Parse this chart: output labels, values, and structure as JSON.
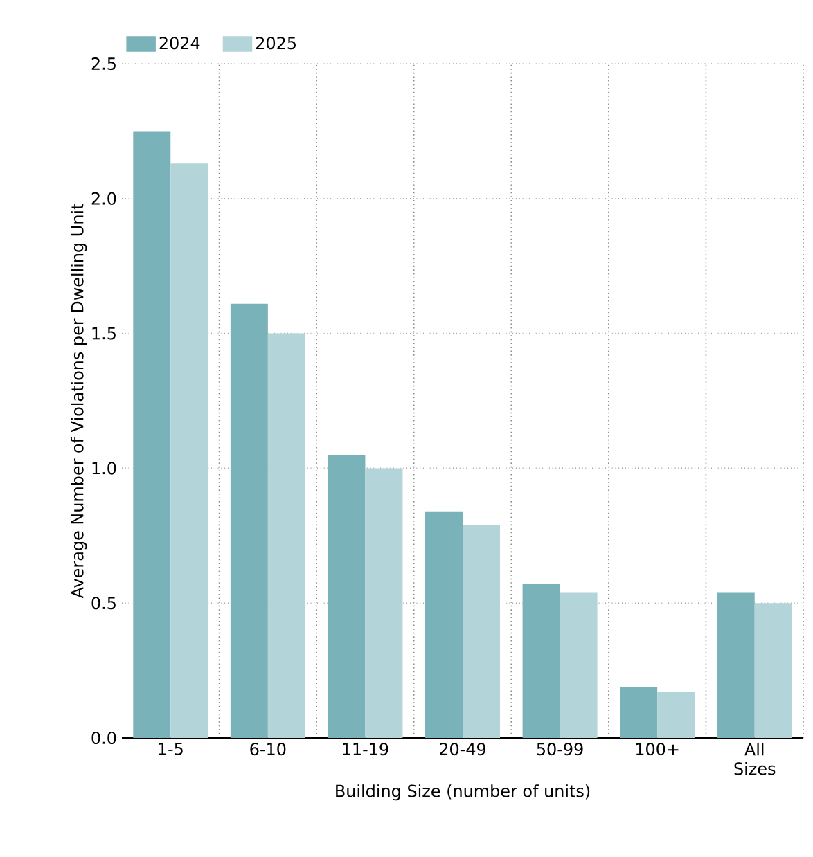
{
  "chart_data": {
    "type": "bar",
    "xlabel": "Building Size (number of units)",
    "ylabel": "Average Number of Violations per Dwelling Unit",
    "categories": [
      "1-5",
      "6-10",
      "11-19",
      "20-49",
      "50-99",
      "100+",
      "All Sizes"
    ],
    "series": [
      {
        "name": "2024",
        "color": "#79b3b9",
        "values": [
          2.25,
          1.61,
          1.05,
          0.84,
          0.57,
          0.19,
          0.54
        ]
      },
      {
        "name": "2025",
        "color": "#b3d4d8",
        "values": [
          2.13,
          1.5,
          1.0,
          0.79,
          0.54,
          0.17,
          0.5
        ]
      }
    ],
    "ylim": [
      0,
      2.5
    ],
    "yticks": [
      {
        "value": 0,
        "label": "0.0"
      },
      {
        "value": 0.5,
        "label": "0.5"
      },
      {
        "value": 1,
        "label": "1.0"
      },
      {
        "value": 1.5,
        "label": "1.5"
      },
      {
        "value": 2,
        "label": "2.0"
      },
      {
        "value": 2.5,
        "label": "2.5"
      }
    ],
    "grid": true,
    "legend": "top left"
  }
}
